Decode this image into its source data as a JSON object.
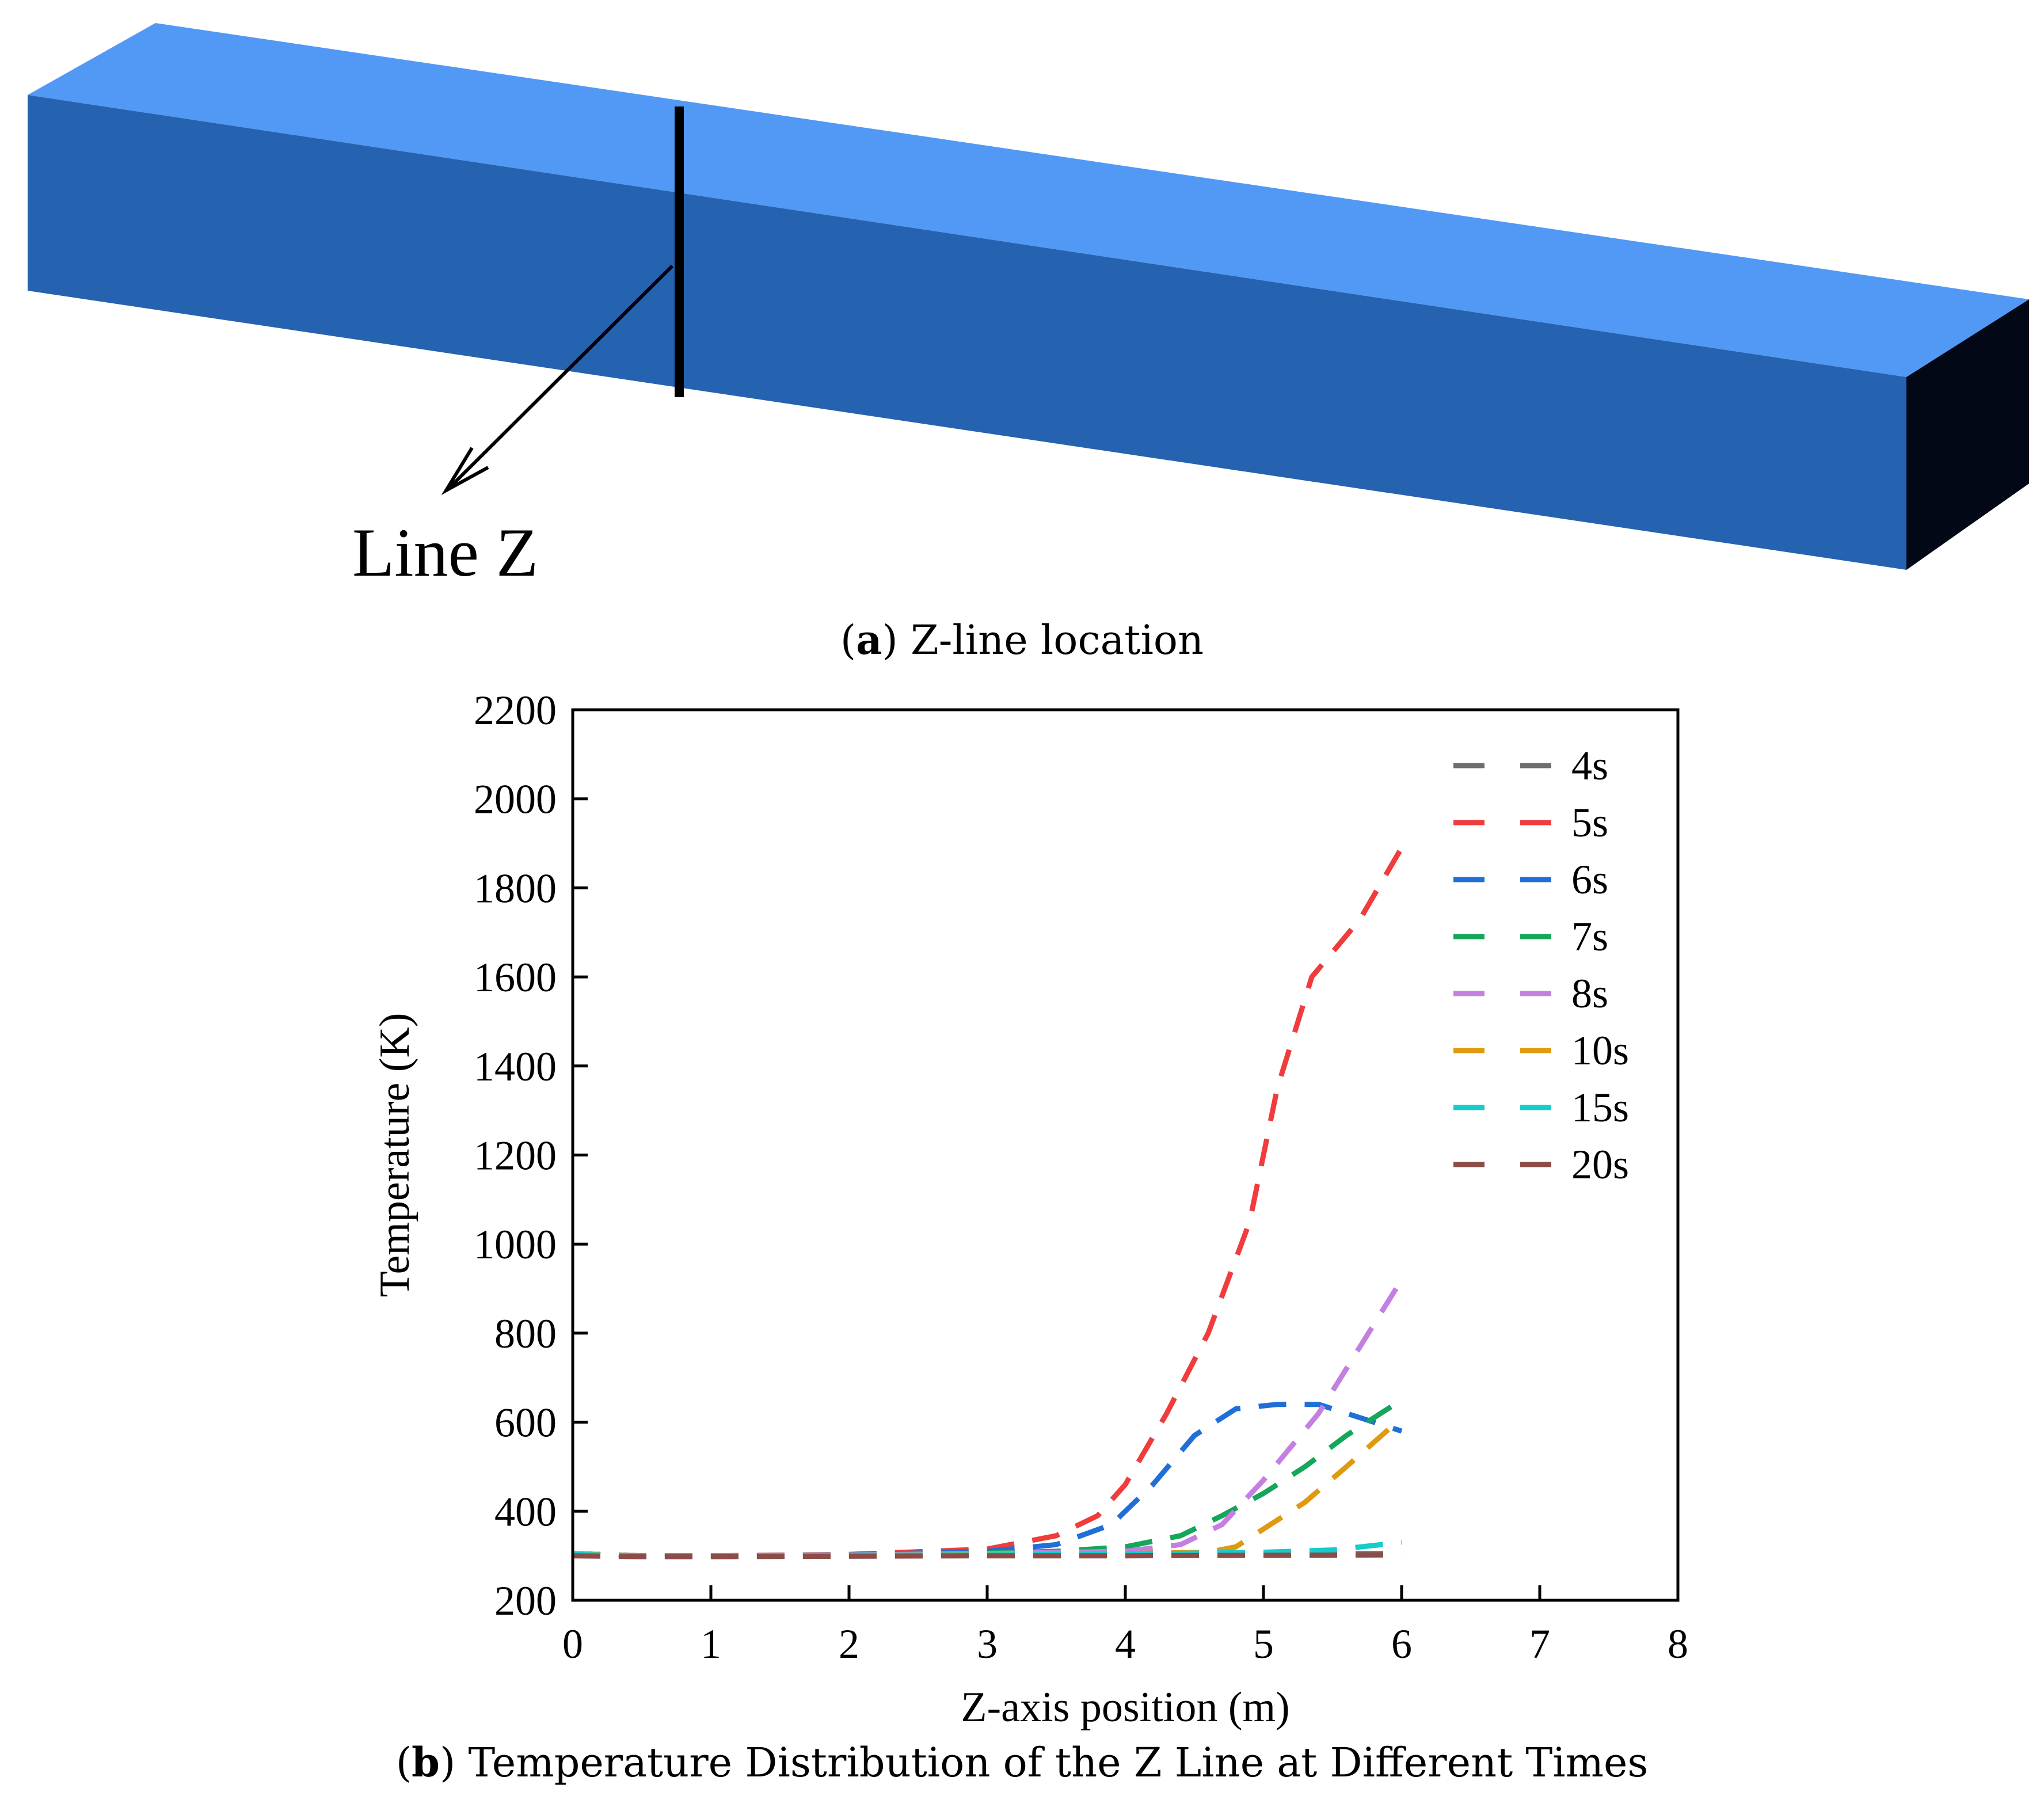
{
  "panel_a": {
    "callout_label": "Line Z",
    "caption_letter": "a",
    "caption_text": " Z-line location",
    "colors": {
      "top": "#5299f5",
      "front": "#2563b0",
      "end": "#020816"
    }
  },
  "panel_b": {
    "caption_letter": "b",
    "caption_text": " Temperature Distribution of the Z Line at Different Times"
  },
  "chart_data": {
    "type": "line",
    "title": "",
    "xlabel": "Z-axis position (m)",
    "ylabel": "Temperature (K)",
    "xlim": [
      0,
      8
    ],
    "ylim": [
      200,
      2200
    ],
    "xticks": [
      0,
      1,
      2,
      3,
      4,
      5,
      6,
      7,
      8
    ],
    "yticks": [
      200,
      400,
      600,
      800,
      1000,
      1200,
      1400,
      1600,
      1800,
      2000,
      2200
    ],
    "grid": false,
    "legend_position": "top-right",
    "line_style": "dashed",
    "series": [
      {
        "name": "4s",
        "color": "#6e6e6e",
        "x": [
          0,
          0.5,
          1,
          2,
          3,
          4,
          5,
          6
        ],
        "y": [
          302,
          300,
          300,
          301,
          302,
          304,
          304,
          305
        ]
      },
      {
        "name": "5s",
        "color": "#f03c3c",
        "x": [
          0,
          0.5,
          1,
          2,
          3,
          3.5,
          3.8,
          4,
          4.3,
          4.6,
          4.9,
          5.1,
          5.35,
          5.7,
          6
        ],
        "y": [
          305,
          300,
          300,
          303,
          315,
          345,
          390,
          460,
          620,
          800,
          1050,
          1350,
          1600,
          1730,
          1890
        ]
      },
      {
        "name": "6s",
        "color": "#1f6fd6",
        "x": [
          0,
          0.5,
          1,
          2,
          3,
          3.5,
          3.9,
          4.2,
          4.5,
          4.8,
          5.1,
          5.4,
          5.7,
          6
        ],
        "y": [
          305,
          300,
          300,
          302,
          310,
          325,
          370,
          460,
          570,
          630,
          640,
          640,
          610,
          580
        ]
      },
      {
        "name": "7s",
        "color": "#15a65a",
        "x": [
          0,
          0.5,
          1,
          2,
          3,
          3.5,
          4,
          4.4,
          4.7,
          5,
          5.3,
          5.6,
          6
        ],
        "y": [
          305,
          300,
          300,
          302,
          306,
          310,
          320,
          345,
          390,
          440,
          500,
          570,
          650
        ]
      },
      {
        "name": "8s",
        "color": "#c480e0",
        "x": [
          0,
          0.5,
          1,
          2,
          3,
          4,
          4.4,
          4.7,
          5,
          5.4,
          5.7,
          6
        ],
        "y": [
          305,
          300,
          300,
          302,
          305,
          310,
          325,
          370,
          470,
          620,
          770,
          920
        ]
      },
      {
        "name": "10s",
        "color": "#e09a10",
        "x": [
          0,
          0.5,
          1,
          2,
          3,
          4,
          4.6,
          4.8,
          5,
          5.3,
          5.6,
          6
        ],
        "y": [
          305,
          300,
          300,
          301,
          303,
          305,
          308,
          320,
          360,
          420,
          500,
          610
        ]
      },
      {
        "name": "15s",
        "color": "#14cccc",
        "x": [
          0,
          0.5,
          1,
          2,
          3,
          4,
          5,
          5.5,
          6
        ],
        "y": [
          303,
          300,
          300,
          301,
          302,
          304,
          308,
          313,
          330
        ]
      },
      {
        "name": "20s",
        "color": "#8c4c48",
        "x": [
          0,
          0.5,
          1,
          2,
          3,
          4,
          5,
          6
        ],
        "y": [
          300,
          298,
          298,
          299,
          300,
          300,
          301,
          302
        ]
      }
    ]
  }
}
